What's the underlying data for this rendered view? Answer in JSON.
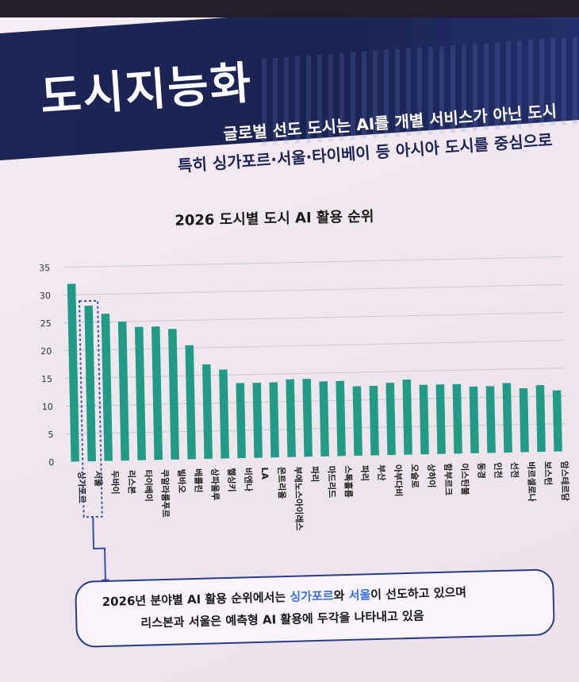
{
  "page": {
    "title": "도시지능화",
    "subtitle_line1": "글로벌 선도 도시는 AI를 개별 서비스가 아닌 도시",
    "subtitle_line2": "특히 싱가포르·서울·타이베이 등 아시아 도시를 중심으로"
  },
  "chart_data": {
    "type": "bar",
    "title": "2026 도시별 도시 AI 활용 순위",
    "xlabel": "",
    "ylabel": "",
    "ylim": [
      0,
      35
    ],
    "yticks": [
      0,
      5,
      10,
      15,
      20,
      25,
      30,
      35
    ],
    "grid": true,
    "bar_color": "#1f9b86",
    "highlight_color": "#3a4fa8",
    "highlighted_category": "서울",
    "categories": [
      "싱가포르",
      "서울",
      "두바이",
      "리스본",
      "타이베이",
      "쿠알라룸푸르",
      "빌바오",
      "베를린",
      "상파울루",
      "헬싱키",
      "비엔나",
      "LA",
      "몬트리올",
      "부에노스아이레스",
      "파리",
      "마드리드",
      "스톡홀름",
      "파리",
      "부산",
      "아부다비",
      "오슬로",
      "상하이",
      "함부르크",
      "이스탄불",
      "동경",
      "인천",
      "선전",
      "바르셀로나",
      "보스턴",
      "암스테르담"
    ],
    "values": [
      32,
      28,
      26.5,
      25,
      24,
      24,
      23.5,
      20.5,
      17,
      16,
      13.5,
      13.5,
      13.5,
      14,
      14,
      13.5,
      13.5,
      12.5,
      12.5,
      13,
      13.5,
      12.5,
      12.5,
      12.5,
      12,
      12,
      12.5,
      11.5,
      12,
      11
    ]
  },
  "callout": {
    "line1_a": "2026년 분야별 AI 활용 순위에서는 ",
    "line1_b": "싱가포르",
    "line1_c": "와 ",
    "line1_d": "서울",
    "line1_e": "이 선도하고 있으며",
    "line2": "리스본과 서울은 예측형 AI 활용에 두각을 나타내고 있음"
  }
}
